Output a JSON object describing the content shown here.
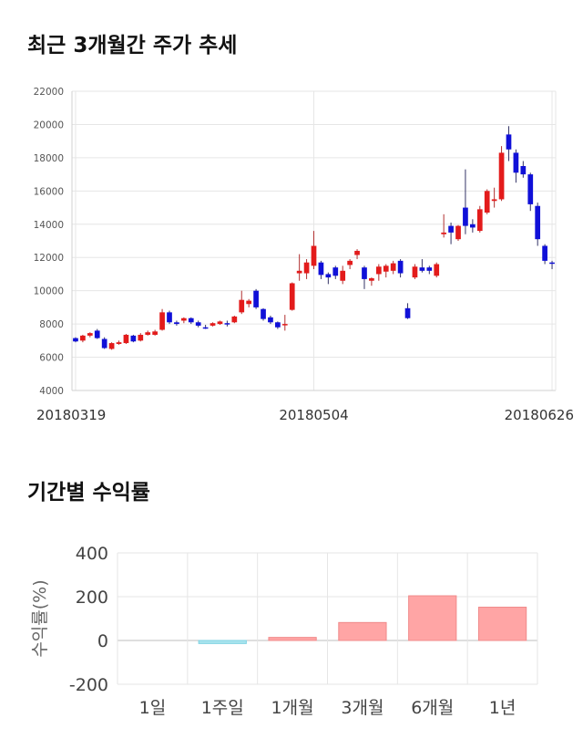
{
  "sections": {
    "price_title": "최근 3개월간 주가 추세",
    "return_title": "기간별 수익률"
  },
  "chart_data": [
    {
      "type": "candlestick",
      "title": "최근 3개월간 주가 추세",
      "ylim": [
        4000,
        22000
      ],
      "yticks": [
        4000,
        6000,
        8000,
        10000,
        12000,
        14000,
        16000,
        18000,
        20000,
        22000
      ],
      "x_tick_labels": [
        "20180319",
        "20180504",
        "20180626"
      ],
      "grid": true,
      "up_color": "#e31b1b",
      "down_color": "#1010d8",
      "candles": [
        [
          7150,
          6950,
          7200,
          6900
        ],
        [
          7000,
          7300,
          7350,
          6900
        ],
        [
          7300,
          7450,
          7500,
          7200
        ],
        [
          7600,
          7150,
          7700,
          7100
        ],
        [
          7100,
          6550,
          7200,
          6500
        ],
        [
          6500,
          6850,
          6900,
          6450
        ],
        [
          6800,
          6900,
          7000,
          6750
        ],
        [
          6850,
          7350,
          7400,
          6800
        ],
        [
          7300,
          6950,
          7350,
          6900
        ],
        [
          7000,
          7350,
          7450,
          6950
        ],
        [
          7350,
          7500,
          7600,
          7300
        ],
        [
          7350,
          7550,
          7650,
          7300
        ],
        [
          7650,
          8700,
          8900,
          7600
        ],
        [
          8700,
          8100,
          8800,
          8000
        ],
        [
          8100,
          8000,
          8200,
          7900
        ],
        [
          8200,
          8350,
          8400,
          8050
        ],
        [
          8350,
          8100,
          8400,
          8000
        ],
        [
          8100,
          7900,
          8200,
          7800
        ],
        [
          7800,
          7750,
          7950,
          7700
        ],
        [
          7900,
          8050,
          8100,
          7850
        ],
        [
          8000,
          8150,
          8200,
          7950
        ],
        [
          8050,
          8000,
          8200,
          7850
        ],
        [
          8100,
          8450,
          8500,
          8050
        ],
        [
          8700,
          9450,
          10000,
          8600
        ],
        [
          9200,
          9400,
          9500,
          9000
        ],
        [
          10000,
          9000,
          10100,
          8900
        ],
        [
          8900,
          8300,
          8950,
          8200
        ],
        [
          8400,
          8100,
          8500,
          8000
        ],
        [
          8100,
          7800,
          8150,
          7700
        ],
        [
          8000,
          8000,
          8550,
          7600
        ],
        [
          8850,
          10450,
          10500,
          8800
        ],
        [
          11050,
          11200,
          12200,
          10600
        ],
        [
          11050,
          11700,
          11900,
          10700
        ],
        [
          11500,
          12700,
          13600,
          11300
        ],
        [
          11700,
          10950,
          11800,
          10700
        ],
        [
          11000,
          10800,
          11100,
          10400
        ],
        [
          11400,
          10900,
          11500,
          10700
        ],
        [
          10600,
          11200,
          11500,
          10400
        ],
        [
          11550,
          11800,
          11900,
          11300
        ],
        [
          12150,
          12400,
          12500,
          11900
        ],
        [
          11400,
          10700,
          11500,
          10100
        ],
        [
          10600,
          10750,
          10800,
          10300
        ],
        [
          11000,
          11450,
          11600,
          10600
        ],
        [
          11150,
          11500,
          11600,
          10800
        ],
        [
          11200,
          11650,
          11800,
          11000
        ],
        [
          11800,
          11050,
          11900,
          10800
        ],
        [
          8950,
          8350,
          9250,
          8300
        ],
        [
          10800,
          11450,
          11600,
          10700
        ],
        [
          11400,
          11200,
          11900,
          11100
        ],
        [
          11400,
          11200,
          11500,
          11000
        ],
        [
          10900,
          11600,
          11700,
          10800
        ],
        [
          13400,
          13500,
          14600,
          13200
        ],
        [
          13900,
          13500,
          14100,
          12800
        ],
        [
          13100,
          13900,
          13950,
          13000
        ],
        [
          15000,
          13900,
          17300,
          13400
        ],
        [
          14000,
          13800,
          14300,
          13500
        ],
        [
          13600,
          14900,
          15100,
          13500
        ],
        [
          14700,
          16000,
          16100,
          14600
        ],
        [
          15400,
          15500,
          16200,
          15000
        ],
        [
          15500,
          18300,
          18700,
          15400
        ],
        [
          19400,
          18500,
          19900,
          17800
        ],
        [
          18300,
          17100,
          18500,
          16500
        ],
        [
          17500,
          17000,
          17800,
          16800
        ],
        [
          17000,
          15200,
          17100,
          14800
        ],
        [
          15100,
          13100,
          15300,
          12700
        ],
        [
          12700,
          11800,
          12800,
          11600
        ],
        [
          11700,
          11650,
          11800,
          11300
        ]
      ]
    },
    {
      "type": "bar",
      "title": "기간별 수익률",
      "ylabel": "수익률(%)",
      "categories": [
        "1일",
        "1주일",
        "1개월",
        "3개월",
        "6개월",
        "1년"
      ],
      "values": [
        0,
        -14,
        14,
        82,
        204,
        152
      ],
      "ylim": [
        -200,
        400
      ],
      "yticks": [
        -200,
        0,
        200,
        400
      ],
      "grid": true,
      "positive_color": "#ffa5a5",
      "negative_color": "#a9e4ee"
    }
  ]
}
